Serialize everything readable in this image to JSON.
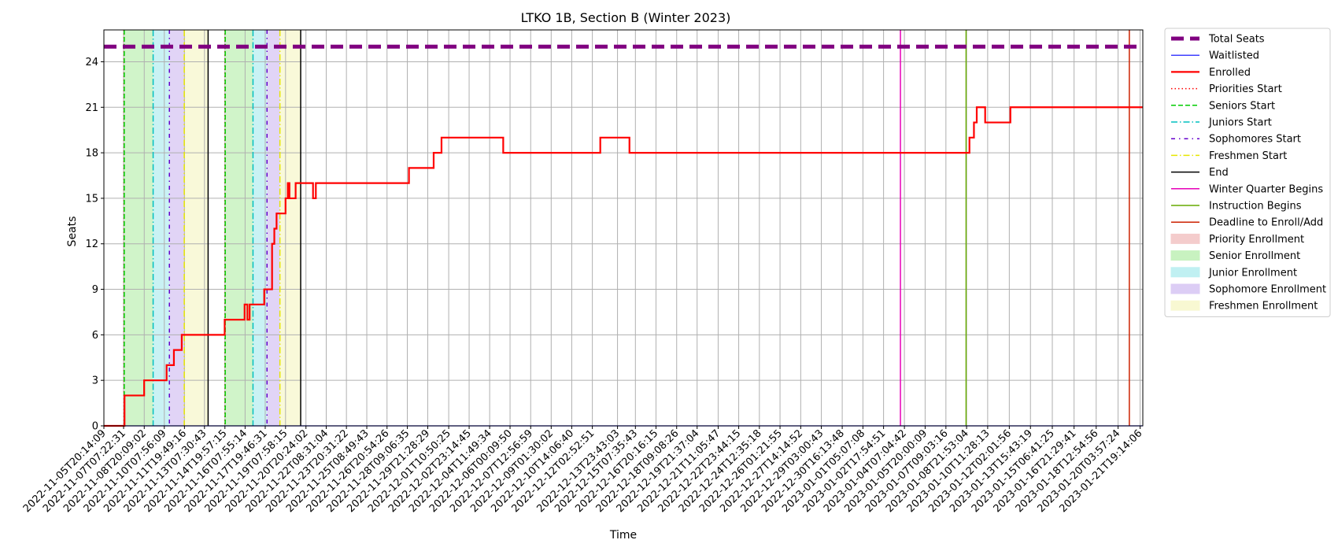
{
  "chart_data": {
    "type": "line",
    "title": "LTKO 1B, Section B (Winter 2023)",
    "xlabel": "Time",
    "ylabel": "Seats",
    "ylim": [
      0,
      26.1
    ],
    "xlim": [
      "2022-11-05T20:14:09",
      "2023-01-22T00:00:00"
    ],
    "yticks": [
      0,
      3,
      6,
      9,
      12,
      15,
      18,
      21,
      24
    ],
    "grid": true,
    "legend_position": "outside-right",
    "xticks": [
      "2022-11-05T20:14:09",
      "2022-11-07T07:22:31",
      "2022-11-08T20:09:02",
      "2022-11-10T07:56:09",
      "2022-11-11T19:49:16",
      "2022-11-13T07:30:43",
      "2022-11-14T19:57:15",
      "2022-11-16T07:55:14",
      "2022-11-17T19:46:31",
      "2022-11-19T07:58:15",
      "2022-11-20T20:24:02",
      "2022-11-22T08:31:04",
      "2022-11-23T20:31:22",
      "2022-11-25T08:49:43",
      "2022-11-26T20:54:26",
      "2022-11-28T09:06:35",
      "2022-11-29T21:28:29",
      "2022-12-01T10:50:25",
      "2022-12-02T23:14:45",
      "2022-12-04T11:49:34",
      "2022-12-06T00:09:50",
      "2022-12-07T12:56:59",
      "2022-12-09T01:30:02",
      "2022-12-10T14:06:40",
      "2022-12-12T02:52:51",
      "2022-12-13T23:43:03",
      "2022-12-15T07:35:43",
      "2022-12-16T20:16:15",
      "2022-12-18T09:08:26",
      "2022-12-19T21:37:04",
      "2022-12-21T11:05:47",
      "2022-12-22T23:44:15",
      "2022-12-24T12:35:18",
      "2022-12-26T01:21:55",
      "2022-12-27T14:14:52",
      "2022-12-29T03:00:43",
      "2022-12-30T16:13:48",
      "2023-01-01T05:07:08",
      "2023-01-02T17:54:51",
      "2023-01-04T07:04:42",
      "2023-01-05T20:00:09",
      "2023-01-07T09:03:16",
      "2023-01-08T21:53:04",
      "2023-01-10T11:28:13",
      "2023-01-12T02:01:56",
      "2023-01-13T15:43:19",
      "2023-01-15T06:41:25",
      "2023-01-16T21:29:41",
      "2023-01-18T12:54:56",
      "2023-01-20T03:57:24",
      "2023-01-21T19:14:06"
    ],
    "series": [
      {
        "name": "Total Seats",
        "color": "#800080",
        "style": "dashed-thick",
        "x": [
          "2022-11-05T20:14:09",
          "2023-01-22T00:00:00"
        ],
        "y": [
          25,
          25
        ]
      },
      {
        "name": "Waitlisted",
        "color": "#0000ff",
        "style": "solid-thin",
        "x": [
          "2022-11-05T20:14:09",
          "2023-01-22T00:00:00"
        ],
        "y": [
          0,
          0
        ]
      },
      {
        "name": "Enrolled",
        "color": "#ff0000",
        "style": "step",
        "x": [
          "2022-11-05T20:14:09",
          "2022-11-07T07:00:00",
          "2022-11-07T09:00:00",
          "2022-11-08T20:00:00",
          "2022-11-10T07:56:00",
          "2022-11-10T12:00:00",
          "2022-11-11T01:00:00",
          "2022-11-11T15:00:00",
          "2022-11-12T06:00:00",
          "2022-11-14T19:30:00",
          "2022-11-16T07:00:00",
          "2022-11-16T12:00:00",
          "2022-11-16T16:00:00",
          "2022-11-17T18:00:00",
          "2022-11-18T08:00:00",
          "2022-11-18T12:00:00",
          "2022-11-18T16:00:00",
          "2022-11-19T08:00:00",
          "2022-11-19T12:00:00",
          "2022-11-19T15:00:00",
          "2022-11-20T02:00:00",
          "2022-11-20T08:00:00",
          "2022-11-21T09:00:00",
          "2022-11-21T14:00:00",
          "2022-11-28T12:00:00",
          "2022-11-30T08:00:00",
          "2022-11-30T14:00:00",
          "2022-11-30T22:00:00",
          "2022-12-05T12:00:00",
          "2022-12-12T17:00:00",
          "2022-12-14T21:00:00",
          "2023-01-08T20:00:00",
          "2023-01-09T03:00:00",
          "2023-01-09T11:00:00",
          "2023-01-09T16:00:00",
          "2023-01-10T07:00:00",
          "2023-01-12T04:00:00",
          "2023-01-22T00:00:00"
        ],
        "y": [
          0,
          0,
          2,
          3,
          3,
          4,
          5,
          6,
          6,
          7,
          8,
          7,
          8,
          9,
          12,
          13,
          14,
          15,
          16,
          15,
          16,
          16,
          15,
          16,
          17,
          18,
          18,
          19,
          18,
          19,
          18,
          18,
          19,
          20,
          21,
          20,
          21,
          21
        ]
      }
    ],
    "vertical_lines": [
      {
        "name": "Priorities Start",
        "color": "#ff0000",
        "style": "dotted",
        "x": [
          "2022-11-07T08:00:00",
          "2022-11-14T19:57:15"
        ]
      },
      {
        "name": "Seniors Start",
        "color": "#00cc00",
        "style": "dashed",
        "x": [
          "2022-11-07T08:30:00",
          "2022-11-14T20:30:00"
        ]
      },
      {
        "name": "Juniors Start",
        "color": "#00bfbf",
        "style": "dashdot",
        "x": [
          "2022-11-09T12:00:00",
          "2022-11-16T22:00:00"
        ]
      },
      {
        "name": "Sophomores Start",
        "color": "#6600cc",
        "style": "dashdot-loose",
        "x": [
          "2022-11-10T17:00:00",
          "2022-11-17T23:00:00"
        ]
      },
      {
        "name": "Freshmen Start",
        "color": "#e6e600",
        "style": "dashdot",
        "x": [
          "2022-11-11T19:30:00",
          "2022-11-18T22:00:00"
        ]
      },
      {
        "name": "End",
        "color": "#000000",
        "style": "solid",
        "x": [
          "2022-11-13T14:00:00",
          "2022-11-20T11:00:00"
        ]
      },
      {
        "name": "Winter Quarter Begins",
        "color": "#e600b8",
        "style": "solid",
        "x": [
          "2023-01-04T00:00:00"
        ]
      },
      {
        "name": "Instruction Begins",
        "color": "#66aa00",
        "style": "solid",
        "x": [
          "2023-01-08T21:00:00"
        ]
      },
      {
        "name": "Deadline to Enroll/Add",
        "color": "#cc2200",
        "style": "solid",
        "x": [
          "2023-01-21T00:00:00"
        ]
      }
    ],
    "spans": [
      {
        "name": "Priority Enrollment",
        "color": "#f4cccc",
        "ranges": [
          [
            "2022-11-07T08:00:00",
            "2022-11-07T08:30:00"
          ],
          [
            "2022-11-14T19:57:15",
            "2022-11-14T20:30:00"
          ]
        ]
      },
      {
        "name": "Senior Enrollment",
        "color": "#c8f2c0",
        "ranges": [
          [
            "2022-11-07T08:30:00",
            "2022-11-09T12:00:00"
          ],
          [
            "2022-11-14T20:30:00",
            "2022-11-16T22:00:00"
          ]
        ]
      },
      {
        "name": "Junior Enrollment",
        "color": "#c0f0f2",
        "ranges": [
          [
            "2022-11-09T12:00:00",
            "2022-11-10T17:00:00"
          ],
          [
            "2022-11-16T22:00:00",
            "2022-11-17T23:00:00"
          ]
        ]
      },
      {
        "name": "Sophomore Enrollment",
        "color": "#dccdf5",
        "ranges": [
          [
            "2022-11-10T17:00:00",
            "2022-11-11T19:30:00"
          ],
          [
            "2022-11-17T23:00:00",
            "2022-11-18T22:00:00"
          ]
        ]
      },
      {
        "name": "Freshmen Enrollment",
        "color": "#f8f8d2",
        "ranges": [
          [
            "2022-11-11T19:30:00",
            "2022-11-13T14:00:00"
          ],
          [
            "2022-11-18T22:00:00",
            "2022-11-20T11:00:00"
          ]
        ]
      }
    ],
    "legend": [
      {
        "label": "Total Seats",
        "kind": "line",
        "color": "#800080",
        "style": "dashed-thick"
      },
      {
        "label": "Waitlisted",
        "kind": "line",
        "color": "#0000ff",
        "style": "solid-thin"
      },
      {
        "label": "Enrolled",
        "kind": "line",
        "color": "#ff0000",
        "style": "solid-thick"
      },
      {
        "label": "Priorities Start",
        "kind": "line",
        "color": "#ff0000",
        "style": "dotted"
      },
      {
        "label": "Seniors Start",
        "kind": "line",
        "color": "#00cc00",
        "style": "dashed"
      },
      {
        "label": "Juniors Start",
        "kind": "line",
        "color": "#00bfbf",
        "style": "dashdot"
      },
      {
        "label": "Sophomores Start",
        "kind": "line",
        "color": "#6600cc",
        "style": "dashdot-loose"
      },
      {
        "label": "Freshmen Start",
        "kind": "line",
        "color": "#e6e600",
        "style": "dashdot"
      },
      {
        "label": "End",
        "kind": "line",
        "color": "#000000",
        "style": "solid"
      },
      {
        "label": "Winter Quarter Begins",
        "kind": "line",
        "color": "#e600b8",
        "style": "solid"
      },
      {
        "label": "Instruction Begins",
        "kind": "line",
        "color": "#66aa00",
        "style": "solid"
      },
      {
        "label": "Deadline to Enroll/Add",
        "kind": "line",
        "color": "#cc2200",
        "style": "solid"
      },
      {
        "label": "Priority Enrollment",
        "kind": "patch",
        "color": "#f4cccc"
      },
      {
        "label": "Senior Enrollment",
        "kind": "patch",
        "color": "#c8f2c0"
      },
      {
        "label": "Junior Enrollment",
        "kind": "patch",
        "color": "#c0f0f2"
      },
      {
        "label": "Sophomore Enrollment",
        "kind": "patch",
        "color": "#dccdf5"
      },
      {
        "label": "Freshmen Enrollment",
        "kind": "patch",
        "color": "#f8f8d2"
      }
    ]
  }
}
